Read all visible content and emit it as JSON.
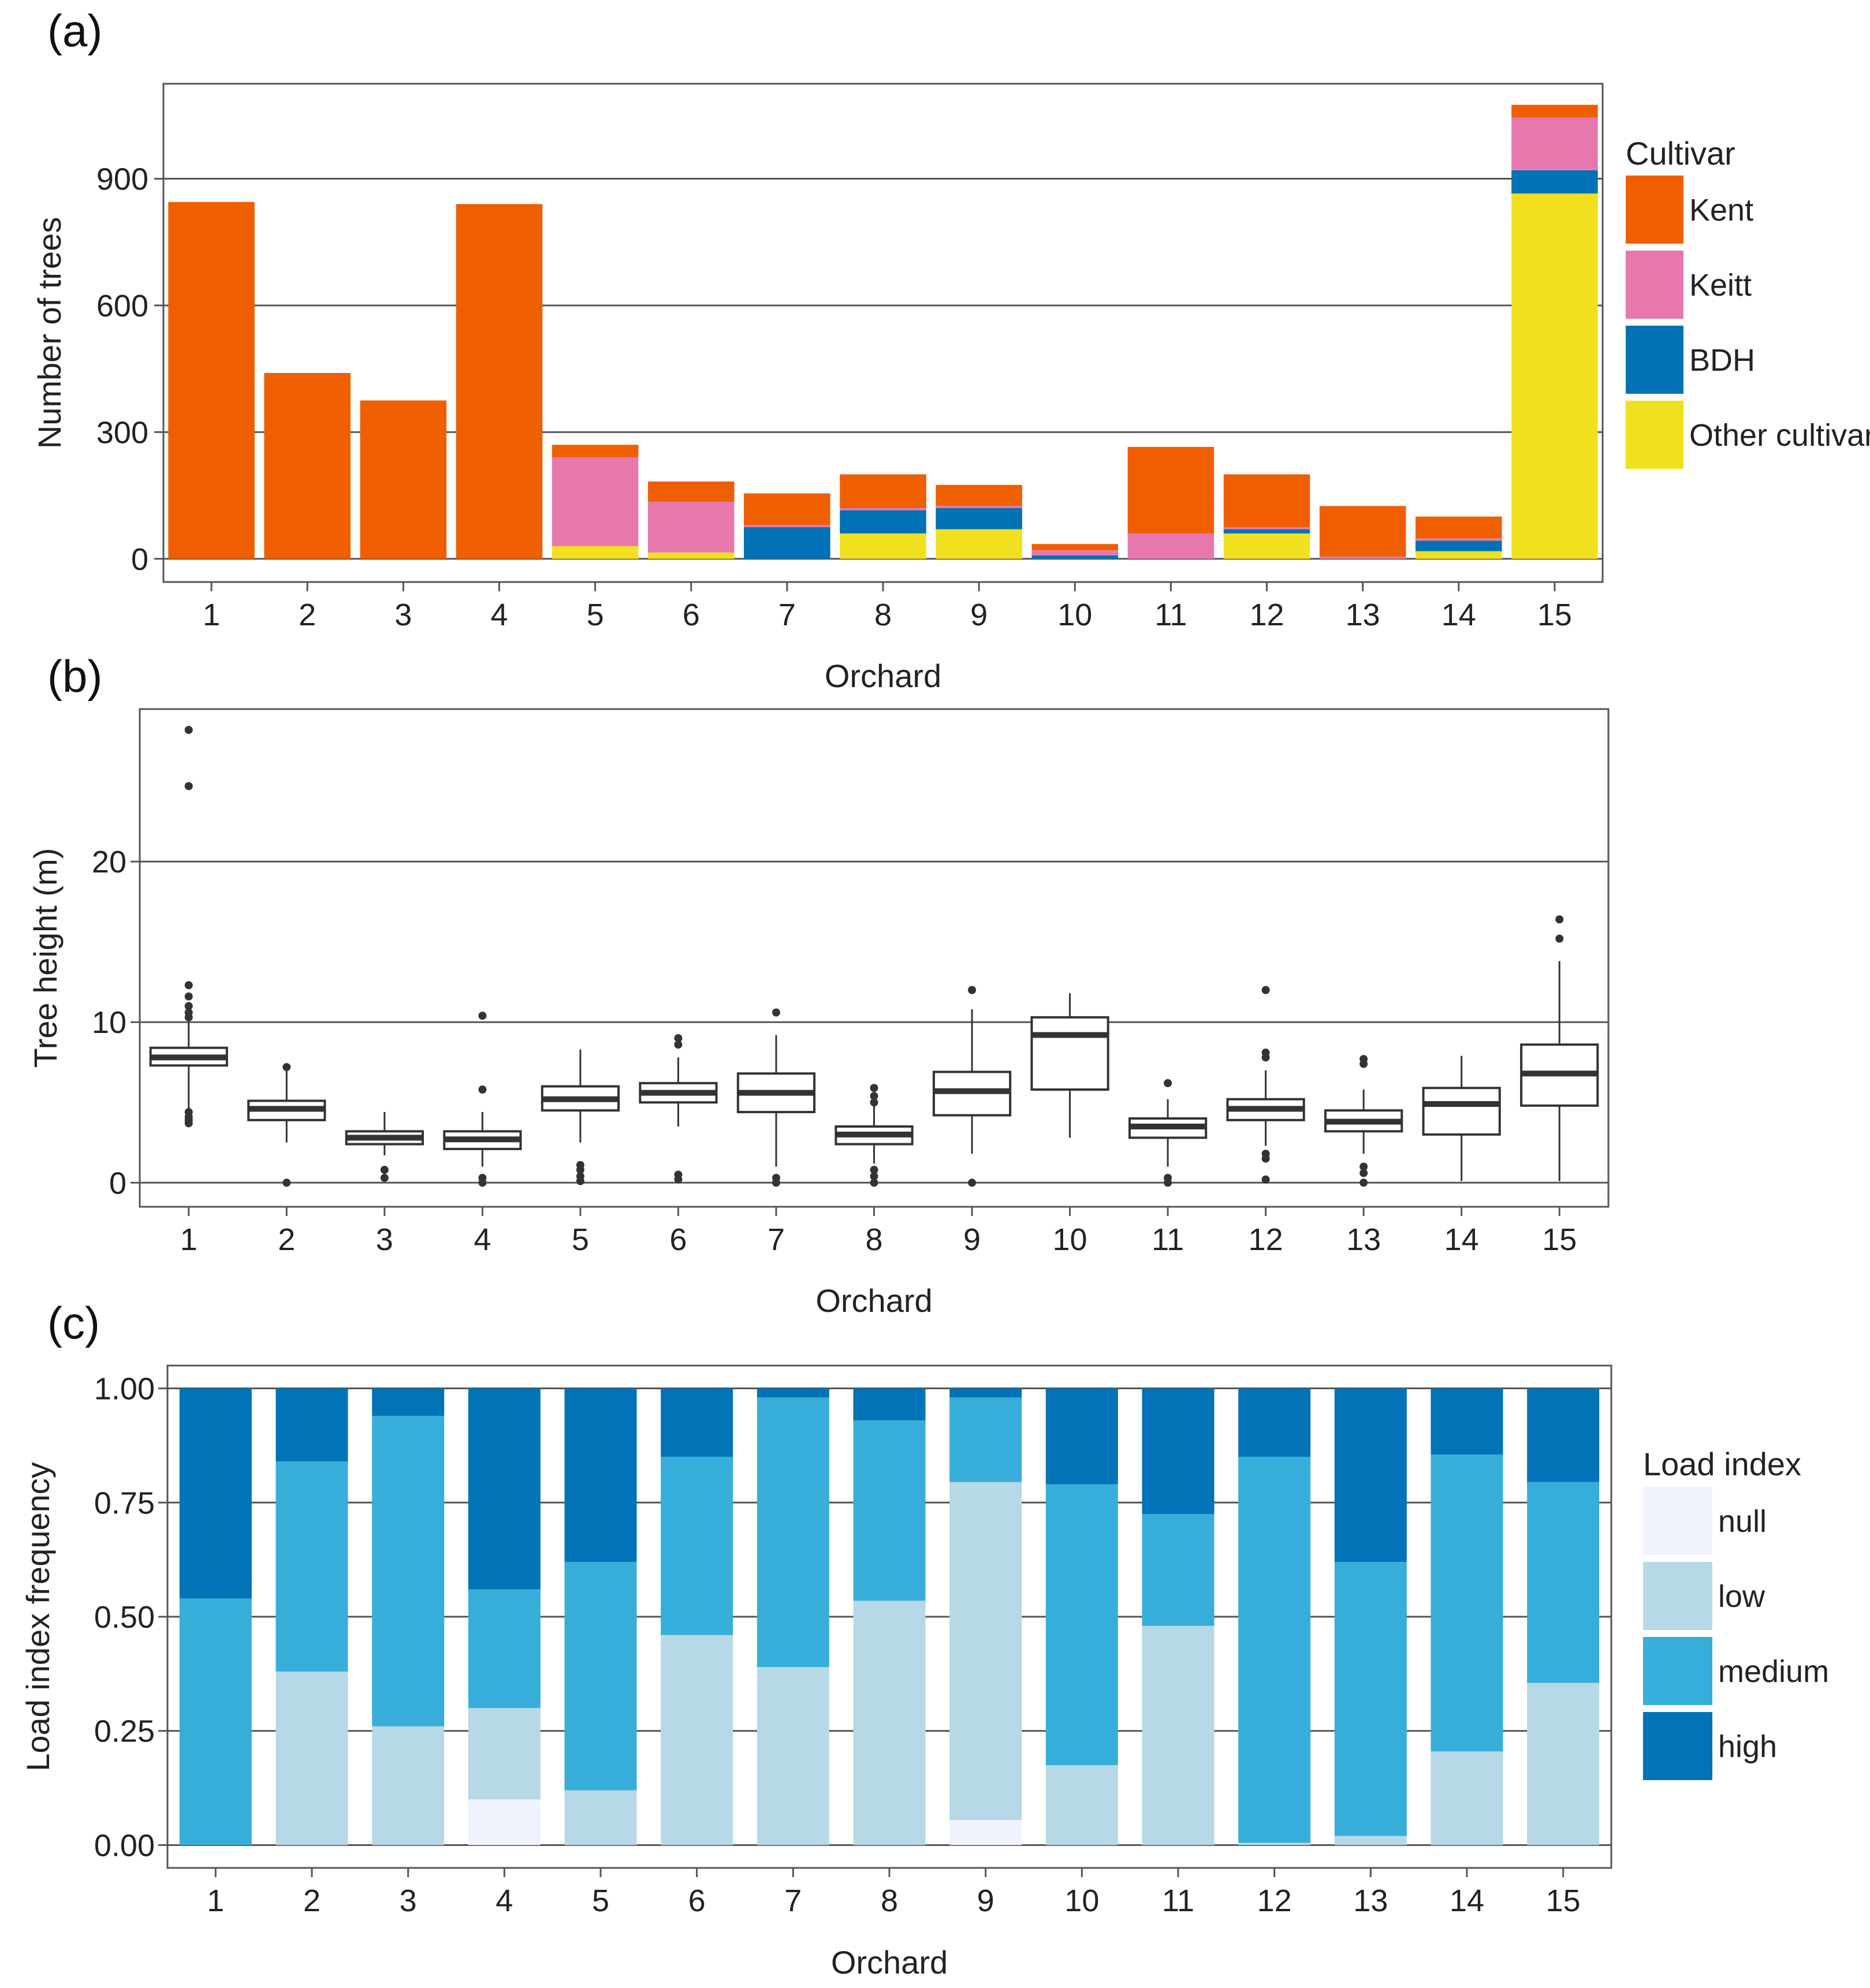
{
  "colors": {
    "Kent": "#ef5f00",
    "Keitt": "#e678ae",
    "BDH": "#0072b5",
    "Other cultivar": "#f1e01f",
    "null": "#eef3fc",
    "low": "#b7d8e6",
    "medium": "#36aed9",
    "high": "#0173b6",
    "box_stroke": "#333333",
    "grid": "#555555"
  },
  "panels": {
    "a": {
      "label": "(a)"
    },
    "b": {
      "label": "(b)"
    },
    "c": {
      "label": "(c)"
    }
  },
  "chart_data": [
    {
      "id": "a",
      "type": "bar",
      "stacked": true,
      "title": "",
      "xlabel": "Orchard",
      "ylabel": "Number of trees",
      "ylim": [
        -55,
        1125
      ],
      "yticks": [
        0,
        300,
        600,
        900
      ],
      "ytick_labels": [
        "0",
        "300",
        "600",
        "900"
      ],
      "categories": [
        "1",
        "2",
        "3",
        "4",
        "5",
        "6",
        "7",
        "8",
        "9",
        "10",
        "11",
        "12",
        "13",
        "14",
        "15"
      ],
      "legend_title": "Cultivar",
      "legend_position": "right",
      "series": [
        {
          "name": "Other cultivar",
          "values": [
            0,
            0,
            0,
            0,
            30,
            15,
            0,
            60,
            70,
            0,
            0,
            60,
            0,
            18,
            865
          ]
        },
        {
          "name": "BDH",
          "values": [
            0,
            0,
            0,
            0,
            0,
            0,
            75,
            55,
            50,
            8,
            0,
            10,
            0,
            25,
            55
          ]
        },
        {
          "name": "Keitt",
          "values": [
            0,
            0,
            0,
            0,
            210,
            120,
            5,
            5,
            5,
            12,
            60,
            5,
            5,
            5,
            125
          ]
        },
        {
          "name": "Kent",
          "values": [
            845,
            440,
            375,
            840,
            30,
            48,
            75,
            80,
            50,
            15,
            205,
            125,
            120,
            52,
            30
          ]
        }
      ],
      "legend_order": [
        "Kent",
        "Keitt",
        "BDH",
        "Other cultivar"
      ]
    },
    {
      "id": "b",
      "type": "box",
      "title": "",
      "xlabel": "Orchard",
      "ylabel": "Tree height (m)",
      "ylim": [
        -1.5,
        29.5
      ],
      "yticks": [
        0,
        10,
        20
      ],
      "ytick_labels": [
        "0",
        "10",
        "20"
      ],
      "categories": [
        "1",
        "2",
        "3",
        "4",
        "5",
        "6",
        "7",
        "8",
        "9",
        "10",
        "11",
        "12",
        "13",
        "14",
        "15"
      ],
      "boxes": [
        {
          "whislo": 4.5,
          "q1": 7.3,
          "med": 7.8,
          "q3": 8.4,
          "whishi": 10.0,
          "fliers": [
            3.7,
            3.9,
            4.1,
            4.4,
            10.3,
            10.6,
            11.0,
            11.6,
            12.3,
            24.7,
            28.2
          ]
        },
        {
          "whislo": 2.5,
          "q1": 3.9,
          "med": 4.6,
          "q3": 5.1,
          "whishi": 7.0,
          "fliers": [
            0.0,
            7.2
          ]
        },
        {
          "whislo": 1.7,
          "q1": 2.4,
          "med": 2.8,
          "q3": 3.2,
          "whishi": 4.4,
          "fliers": [
            0.3,
            0.8
          ]
        },
        {
          "whislo": 1.0,
          "q1": 2.1,
          "med": 2.7,
          "q3": 3.2,
          "whishi": 4.4,
          "fliers": [
            0.0,
            0.3,
            5.8,
            10.4
          ]
        },
        {
          "whislo": 2.5,
          "q1": 4.5,
          "med": 5.2,
          "q3": 6.0,
          "whishi": 8.3,
          "fliers": [
            0.1,
            0.4,
            0.8,
            1.1
          ]
        },
        {
          "whislo": 3.5,
          "q1": 5.0,
          "med": 5.6,
          "q3": 6.2,
          "whishi": 7.8,
          "fliers": [
            0.2,
            0.5,
            8.6,
            9.0
          ]
        },
        {
          "whislo": 1.0,
          "q1": 4.4,
          "med": 5.6,
          "q3": 6.8,
          "whishi": 9.2,
          "fliers": [
            0.0,
            0.3,
            10.6
          ]
        },
        {
          "whislo": 1.2,
          "q1": 2.4,
          "med": 3.0,
          "q3": 3.5,
          "whishi": 4.8,
          "fliers": [
            0.0,
            0.4,
            0.8,
            5.0,
            5.4,
            5.9
          ]
        },
        {
          "whislo": 1.8,
          "q1": 4.2,
          "med": 5.7,
          "q3": 6.9,
          "whishi": 10.8,
          "fliers": [
            0.0,
            12.0
          ]
        },
        {
          "whislo": 2.8,
          "q1": 5.8,
          "med": 9.2,
          "q3": 10.3,
          "whishi": 11.8,
          "fliers": []
        },
        {
          "whislo": 1.0,
          "q1": 2.8,
          "med": 3.5,
          "q3": 4.0,
          "whishi": 5.2,
          "fliers": [
            0.0,
            0.3,
            6.2
          ]
        },
        {
          "whislo": 2.3,
          "q1": 3.9,
          "med": 4.6,
          "q3": 5.2,
          "whishi": 7.0,
          "fliers": [
            0.2,
            1.5,
            1.8,
            7.8,
            8.1,
            12.0
          ]
        },
        {
          "whislo": 1.8,
          "q1": 3.2,
          "med": 3.8,
          "q3": 4.5,
          "whishi": 5.8,
          "fliers": [
            0.0,
            0.6,
            1.0,
            7.4,
            7.7
          ]
        },
        {
          "whislo": 0.1,
          "q1": 3.0,
          "med": 4.9,
          "q3": 5.9,
          "whishi": 7.9,
          "fliers": []
        },
        {
          "whislo": 0.1,
          "q1": 4.8,
          "med": 6.8,
          "q3": 8.6,
          "whishi": 13.8,
          "fliers": [
            15.2,
            16.4
          ]
        }
      ]
    },
    {
      "id": "c",
      "type": "bar",
      "stacked": true,
      "title": "",
      "xlabel": "Orchard",
      "ylabel": "Load index frequency",
      "ylim": [
        -0.05,
        1.05
      ],
      "yticks": [
        0,
        0.25,
        0.5,
        0.75,
        1.0
      ],
      "ytick_labels": [
        "0.00",
        "0.25",
        "0.50",
        "0.75",
        "1.00"
      ],
      "categories": [
        "1",
        "2",
        "3",
        "4",
        "5",
        "6",
        "7",
        "8",
        "9",
        "10",
        "11",
        "12",
        "13",
        "14",
        "15"
      ],
      "legend_title": "Load index",
      "legend_position": "right",
      "series": [
        {
          "name": "null",
          "values": [
            0,
            0,
            0,
            0.1,
            0,
            0,
            0,
            0,
            0.055,
            0,
            0,
            0,
            0,
            0,
            0
          ]
        },
        {
          "name": "low",
          "values": [
            0,
            0.38,
            0.26,
            0.2,
            0.12,
            0.46,
            0.39,
            0.535,
            0.74,
            0.175,
            0.48,
            0.005,
            0.02,
            0.205,
            0.355
          ]
        },
        {
          "name": "medium",
          "values": [
            0.54,
            0.46,
            0.68,
            0.26,
            0.5,
            0.39,
            0.59,
            0.395,
            0.185,
            0.615,
            0.245,
            0.845,
            0.6,
            0.65,
            0.44
          ]
        },
        {
          "name": "high",
          "values": [
            0.46,
            0.16,
            0.06,
            0.44,
            0.38,
            0.15,
            0.02,
            0.07,
            0.02,
            0.21,
            0.275,
            0.15,
            0.38,
            0.145,
            0.205
          ]
        }
      ],
      "legend_order": [
        "null",
        "low",
        "medium",
        "high"
      ]
    }
  ]
}
